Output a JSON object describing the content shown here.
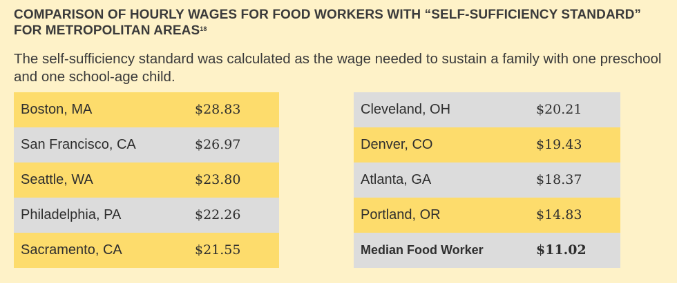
{
  "title": {
    "text": "COMPARISON OF HOURLY WAGES FOR FOOD WORKERS WITH “SELF-SUFFICIENCY STANDARD” FOR METROPOLITAN AREAS",
    "footnote": "18"
  },
  "subtitle": "The self-sufficiency standard was calculated as the wage needed to sustain a family with one preschool and one school-age child.",
  "left_table": [
    {
      "city": "Boston, MA",
      "wage": "$28.83"
    },
    {
      "city": "San Francisco, CA",
      "wage": "$26.97"
    },
    {
      "city": "Seattle, WA",
      "wage": "$23.80"
    },
    {
      "city": "Philadelphia, PA",
      "wage": "$22.26"
    },
    {
      "city": "Sacramento, CA",
      "wage": "$21.55"
    }
  ],
  "right_table": [
    {
      "city": "Cleveland, OH",
      "wage": "$20.21"
    },
    {
      "city": "Denver, CO",
      "wage": "$19.43"
    },
    {
      "city": "Atlanta, GA",
      "wage": "$18.37"
    },
    {
      "city": "Portland, OR",
      "wage": "$14.83"
    },
    {
      "city": "Median Food Worker",
      "wage": "$11.02"
    }
  ],
  "colors": {
    "background": "#fef2c8",
    "row_yellow": "#fddc6c",
    "row_gray": "#dcdcdc"
  }
}
